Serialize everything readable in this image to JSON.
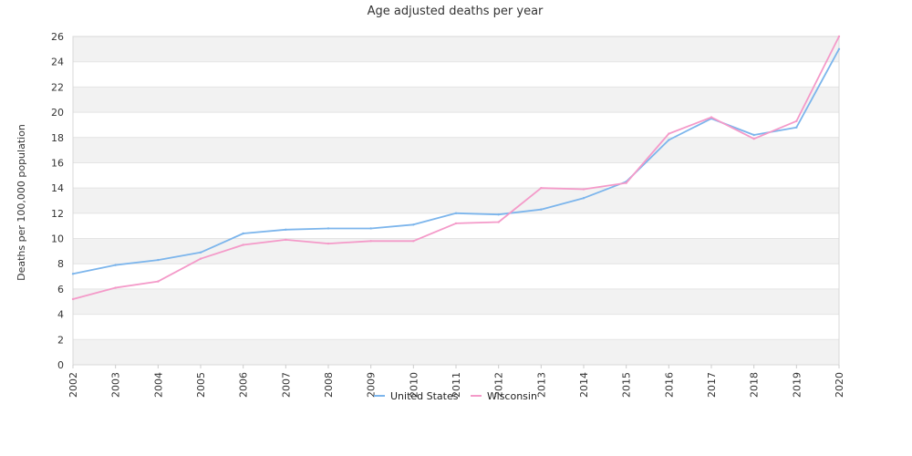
{
  "chart_data": {
    "type": "line",
    "title": "Age adjusted deaths per year",
    "xlabel": "",
    "ylabel": "Deaths per 100,000 population",
    "x": [
      "2002",
      "2003",
      "2004",
      "2005",
      "2006",
      "2007",
      "2008",
      "2009",
      "2010",
      "2011",
      "2012",
      "2013",
      "2014",
      "2015",
      "2016",
      "2017",
      "2018",
      "2019",
      "2020"
    ],
    "ylim": [
      0,
      26
    ],
    "yticks": [
      0,
      2,
      4,
      6,
      8,
      10,
      12,
      14,
      16,
      18,
      20,
      22,
      24,
      26
    ],
    "grid": "alternating horizontal bands",
    "legend_position": "bottom",
    "series": [
      {
        "name": "United States",
        "color": "#7cb5ec",
        "values": [
          7.2,
          7.9,
          8.3,
          8.9,
          10.4,
          10.7,
          10.8,
          10.8,
          11.1,
          12.0,
          11.9,
          12.3,
          13.2,
          14.5,
          17.8,
          19.5,
          18.2,
          18.8,
          25.0
        ]
      },
      {
        "name": "Wisconsin",
        "color": "#f49ac9",
        "values": [
          5.2,
          6.1,
          6.6,
          8.4,
          9.5,
          9.9,
          9.6,
          9.8,
          9.8,
          11.2,
          11.3,
          14.0,
          13.9,
          14.4,
          18.3,
          19.6,
          17.9,
          19.3,
          26.0
        ]
      }
    ]
  }
}
